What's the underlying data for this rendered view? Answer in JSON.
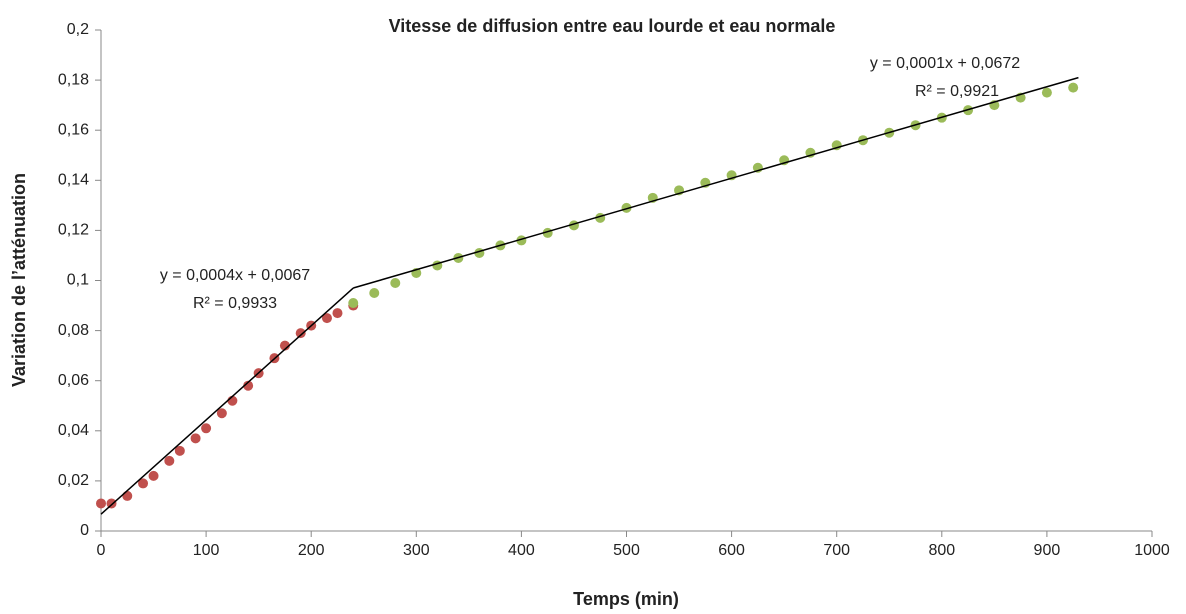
{
  "chart_data": {
    "type": "scatter",
    "title": "Vitesse de diffusion entre eau lourde et eau normale",
    "x_label": "Temps (min)",
    "y_label": "Variation de l’atténuation",
    "xlim": [
      0,
      1000
    ],
    "xticks": [
      0,
      100,
      200,
      300,
      400,
      500,
      600,
      700,
      800,
      900,
      1000
    ],
    "ylim": [
      0,
      0.2
    ],
    "yticks": [
      0,
      {
        "value": 0.02,
        "label": "0,02"
      },
      {
        "value": 0.04,
        "label": "0,04"
      },
      {
        "value": 0.06,
        "label": "0,06"
      },
      {
        "value": 0.08,
        "label": "0,08"
      },
      {
        "value": 0.1,
        "label": "0,1"
      },
      {
        "value": 0.12,
        "label": "0,12"
      },
      {
        "value": 0.14,
        "label": "0,14"
      },
      {
        "value": 0.16,
        "label": "0,16"
      },
      {
        "value": 0.18,
        "label": "0,18"
      },
      {
        "value": 0.2,
        "label": "0,2"
      }
    ],
    "grid": false,
    "series": [
      {
        "color": "#c0504d",
        "x": [
          0,
          10,
          25,
          40,
          50,
          65,
          75,
          90,
          100,
          115,
          125,
          140,
          150,
          165,
          175,
          190,
          200,
          215,
          225,
          240
        ],
        "values": [
          0.011,
          0.011,
          0.014,
          0.019,
          0.022,
          0.028,
          0.032,
          0.037,
          0.041,
          0.047,
          0.052,
          0.058,
          0.063,
          0.069,
          0.074,
          0.079,
          0.082,
          0.085,
          0.087,
          0.09
        ]
      },
      {
        "color": "#9bbb59",
        "x": [
          240,
          260,
          280,
          300,
          320,
          340,
          360,
          380,
          400,
          425,
          450,
          475,
          500,
          525,
          550,
          575,
          600,
          625,
          650,
          675,
          700,
          725,
          750,
          775,
          800,
          825,
          850,
          875,
          900,
          925
        ],
        "values": [
          0.091,
          0.095,
          0.099,
          0.103,
          0.106,
          0.109,
          0.111,
          0.114,
          0.116,
          0.119,
          0.122,
          0.125,
          0.129,
          0.133,
          0.136,
          0.139,
          0.142,
          0.145,
          0.148,
          0.151,
          0.154,
          0.156,
          0.159,
          0.162,
          0.165,
          0.168,
          0.17,
          0.173,
          0.175,
          0.177
        ]
      }
    ],
    "trendlines": [
      {
        "color": "#000000",
        "x": [
          0,
          240
        ],
        "values": [
          0.0067,
          0.097
        ]
      },
      {
        "color": "#000000",
        "x": [
          240,
          930
        ],
        "values": [
          0.097,
          0.181
        ]
      }
    ],
    "annotations": [
      "y = 0,0004x + 0,0067",
      "R² = 0,9933",
      "y = 0,0001x + 0,0672",
      "R² = 0,9921"
    ]
  }
}
